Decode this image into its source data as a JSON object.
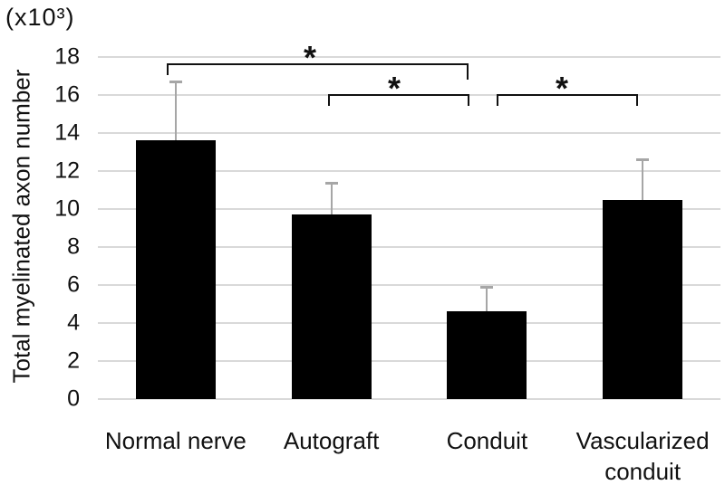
{
  "chart_data": {
    "type": "bar",
    "title": "",
    "ylabel": "Total myelinated axon number",
    "y_unit": "(x10³)",
    "xlabel": "",
    "categories": [
      "Normal nerve",
      "Autograft",
      "Conduit",
      "Vascularized conduit"
    ],
    "values": [
      13.6,
      9.7,
      4.6,
      10.5
    ],
    "errors_plus": [
      3.1,
      1.7,
      1.3,
      2.1
    ],
    "yticks": [
      0,
      2,
      4,
      6,
      8,
      10,
      12,
      14,
      16,
      18
    ],
    "ylim": [
      0,
      18
    ],
    "grid": true,
    "legend": false,
    "bar_color": "#000000",
    "error_bar_color": "#a6a6a6",
    "gridline_color": "#d9d9d9",
    "significance_brackets": [
      {
        "between": [
          "Normal nerve",
          "Conduit"
        ],
        "label": "*"
      },
      {
        "between": [
          "Autograft",
          "Conduit"
        ],
        "label": "*"
      },
      {
        "between": [
          "Conduit",
          "Vascularized conduit"
        ],
        "label": "*"
      }
    ]
  }
}
